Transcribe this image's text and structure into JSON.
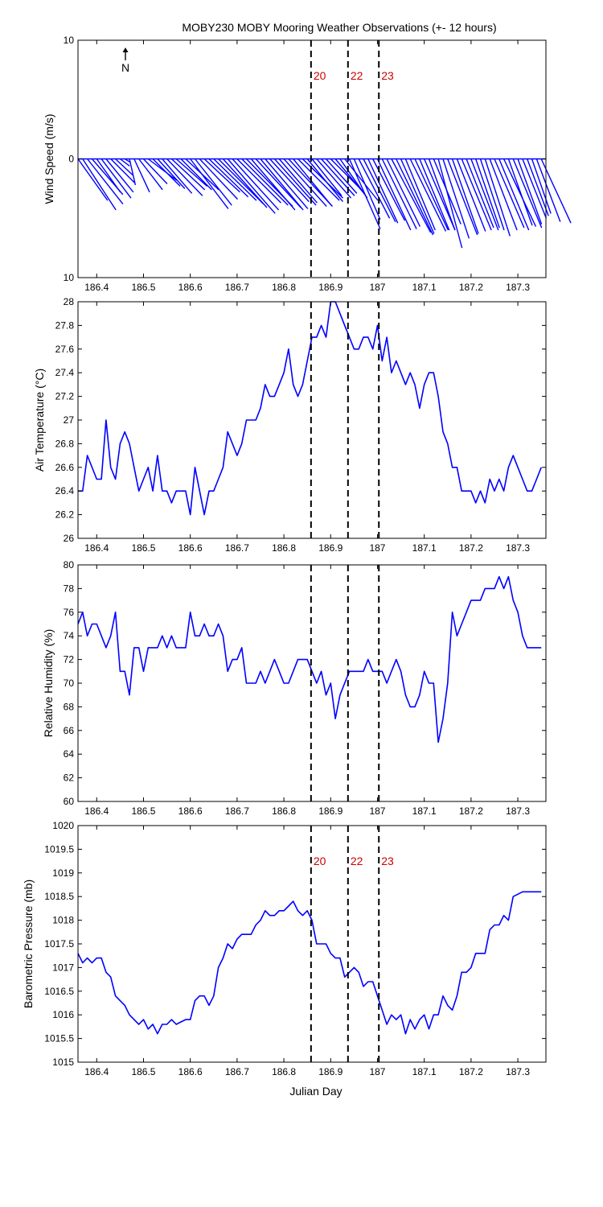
{
  "figure": {
    "title": "MOBY230 MOBY Mooring Weather Observations (+- 12 hours)",
    "xlabel": "Julian Day",
    "north_label": "N"
  },
  "chart_data": [
    {
      "id": "wind",
      "type": "vector",
      "ylabel": "Wind Speed (m/s)",
      "xlim": [
        186.36,
        187.36
      ],
      "ylim": [
        -10,
        10
      ],
      "ytick_labels": [
        "10",
        "0",
        "10"
      ],
      "xticks": [
        "186.4",
        "186.5",
        "186.6",
        "186.7",
        "186.8",
        "186.9",
        "187",
        "187.1",
        "187.2",
        "187.3"
      ],
      "event_lines": [
        186.858,
        186.937,
        187.003
      ],
      "event_labels": [
        "20",
        "22",
        "23"
      ],
      "x": [
        186.36,
        186.37,
        186.38,
        186.39,
        186.4,
        186.41,
        186.42,
        186.43,
        186.44,
        186.45,
        186.46,
        186.47,
        186.48,
        186.49,
        186.5,
        186.51,
        186.52,
        186.53,
        186.54,
        186.55,
        186.56,
        186.57,
        186.58,
        186.59,
        186.6,
        186.61,
        186.62,
        186.63,
        186.64,
        186.65,
        186.66,
        186.67,
        186.68,
        186.69,
        186.7,
        186.71,
        186.72,
        186.73,
        186.74,
        186.75,
        186.76,
        186.77,
        186.78,
        186.79,
        186.8,
        186.81,
        186.82,
        186.83,
        186.84,
        186.85,
        186.86,
        186.87,
        186.88,
        186.89,
        186.9,
        186.91,
        186.92,
        186.93,
        186.94,
        186.95,
        186.96,
        186.97,
        186.98,
        186.99,
        187.0,
        187.01,
        187.02,
        187.03,
        187.04,
        187.05,
        187.06,
        187.07,
        187.08,
        187.09,
        187.1,
        187.11,
        187.12,
        187.13,
        187.14,
        187.15,
        187.16,
        187.17,
        187.18,
        187.19,
        187.2,
        187.21,
        187.22,
        187.23,
        187.24,
        187.25,
        187.26,
        187.27,
        187.28,
        187.29,
        187.3,
        187.31,
        187.32,
        187.33,
        187.34,
        187.35
      ],
      "u": [
        2.5,
        2.8,
        3.0,
        2.6,
        2.0,
        2.5,
        2.3,
        2.0,
        1.5,
        0.8,
        0.5,
        0.5,
        1.3,
        2.0,
        2.0,
        2.4,
        2.3,
        2.3,
        2.5,
        3.0,
        2.8,
        2.6,
        2.6,
        2.8,
        3.2,
        3.1,
        3.2,
        3.0,
        3.3,
        3.6,
        3.8,
        3.7,
        4.0,
        3.9,
        3.7,
        3.9,
        3.9,
        3.7,
        3.8,
        3.6,
        3.6,
        3.3,
        3.5,
        3.2,
        3.6,
        3.7,
        3.2,
        3.5,
        3.4,
        3.0,
        2.5,
        2.9,
        2.8,
        2.6,
        2.7,
        2.5,
        2.3,
        2.8,
        2.6,
        2.2,
        2.6,
        2.7,
        2.5,
        2.7,
        2.8,
        2.9,
        2.8,
        3.3,
        3.1,
        2.8,
        2.5,
        3.0,
        2.8,
        2.5,
        2.6,
        2.2,
        2.3,
        2.0,
        2.2,
        2.5,
        2.2,
        2.4,
        2.5,
        2.3,
        2.3,
        2.0,
        2.0,
        2.1,
        2.3,
        2.5,
        2.5,
        2.7,
        2.0,
        2.4,
        2.0,
        2.0,
        1.8,
        1.6,
        2.0,
        2.5
      ],
      "v": [
        -3.5,
        -4.3,
        -3.8,
        -3.0,
        -2.8,
        -3.3,
        -2.8,
        -2.0,
        -1.4,
        -0.6,
        -0.3,
        -2.2,
        -2.8,
        -2.6,
        -2.1,
        -1.8,
        -2.3,
        -2.5,
        -2.9,
        -3.1,
        -2.6,
        -2.3,
        -2.6,
        -2.6,
        -4.2,
        -3.9,
        -3.4,
        -2.8,
        -3.2,
        -3.5,
        -3.8,
        -4.1,
        -4.6,
        -4.3,
        -3.7,
        -3.9,
        -4.0,
        -4.3,
        -4.1,
        -4.3,
        -4.2,
        -3.6,
        -3.9,
        -3.7,
        -4.0,
        -4.0,
        -3.9,
        -3.5,
        -3.3,
        -3.6,
        -3.1,
        -3.3,
        -3.1,
        -2.9,
        -2.7,
        -3.0,
        -3.3,
        -3.5,
        -5.9,
        -5.1,
        -5.0,
        -5.3,
        -5.4,
        -5.2,
        -6.0,
        -5.9,
        -5.7,
        -6.2,
        -6.4,
        -6.3,
        -6.0,
        -6.1,
        -6.0,
        -6.0,
        -6.0,
        -6.0,
        -5.5,
        -7.5,
        -6.7,
        -6.4,
        -6.3,
        -6.1,
        -6.0,
        -5.8,
        -6.0,
        -5.8,
        -6.0,
        -6.5,
        -6.0,
        -5.8,
        -6.0,
        -5.7,
        -5.6,
        -5.8,
        -5.5,
        -5.0,
        -4.8,
        -4.6,
        -5.3,
        -5.4
      ]
    },
    {
      "id": "air_temperature",
      "type": "line",
      "ylabel": "Air Temperature (°C)",
      "xlim": [
        186.36,
        187.36
      ],
      "ylim": [
        26,
        28
      ],
      "ytick_labels": [
        "26",
        "26.2",
        "26.4",
        "26.6",
        "26.8",
        "27",
        "27.2",
        "27.4",
        "27.6",
        "27.8",
        "28"
      ],
      "xticks": [
        "186.4",
        "186.5",
        "186.6",
        "186.7",
        "186.8",
        "186.9",
        "187",
        "187.1",
        "187.2",
        "187.3"
      ],
      "event_lines": [
        186.858,
        186.937,
        187.003
      ],
      "x": [
        186.36,
        186.37,
        186.38,
        186.39,
        186.4,
        186.41,
        186.42,
        186.43,
        186.44,
        186.45,
        186.46,
        186.47,
        186.48,
        186.49,
        186.5,
        186.51,
        186.52,
        186.53,
        186.54,
        186.55,
        186.56,
        186.57,
        186.58,
        186.59,
        186.6,
        186.61,
        186.62,
        186.63,
        186.64,
        186.65,
        186.66,
        186.67,
        186.68,
        186.69,
        186.7,
        186.71,
        186.72,
        186.73,
        186.74,
        186.75,
        186.76,
        186.77,
        186.78,
        186.79,
        186.8,
        186.81,
        186.82,
        186.83,
        186.84,
        186.85,
        186.86,
        186.87,
        186.88,
        186.89,
        186.9,
        186.91,
        186.92,
        186.93,
        186.94,
        186.95,
        186.96,
        186.97,
        186.98,
        186.99,
        187.0,
        187.01,
        187.02,
        187.03,
        187.04,
        187.05,
        187.06,
        187.07,
        187.08,
        187.09,
        187.1,
        187.11,
        187.12,
        187.13,
        187.14,
        187.15,
        187.16,
        187.17,
        187.18,
        187.19,
        187.2,
        187.21,
        187.22,
        187.23,
        187.24,
        187.25,
        187.26,
        187.27,
        187.28,
        187.29,
        187.3,
        187.31,
        187.32,
        187.33,
        187.34,
        187.35
      ],
      "values": [
        26.4,
        26.4,
        26.7,
        26.6,
        26.5,
        26.5,
        27.0,
        26.6,
        26.5,
        26.8,
        26.9,
        26.8,
        26.6,
        26.4,
        26.5,
        26.6,
        26.4,
        26.7,
        26.4,
        26.4,
        26.3,
        26.4,
        26.4,
        26.4,
        26.2,
        26.6,
        26.4,
        26.2,
        26.4,
        26.4,
        26.5,
        26.6,
        26.9,
        26.8,
        26.7,
        26.8,
        27.0,
        27.0,
        27.0,
        27.1,
        27.3,
        27.2,
        27.2,
        27.3,
        27.4,
        27.6,
        27.3,
        27.2,
        27.3,
        27.5,
        27.7,
        27.7,
        27.8,
        27.7,
        28.0,
        28.0,
        27.9,
        27.8,
        27.7,
        27.6,
        27.6,
        27.7,
        27.7,
        27.6,
        27.8,
        27.5,
        27.7,
        27.4,
        27.5,
        27.4,
        27.3,
        27.4,
        27.3,
        27.1,
        27.3,
        27.4,
        27.4,
        27.2,
        26.9,
        26.8,
        26.6,
        26.6,
        26.4,
        26.4,
        26.4,
        26.3,
        26.4,
        26.3,
        26.5,
        26.4,
        26.5,
        26.4,
        26.6,
        26.7,
        26.6,
        26.5,
        26.4,
        26.4,
        26.5,
        26.6
      ]
    },
    {
      "id": "relative_humidity",
      "type": "line",
      "ylabel": "Relative Humidity (%)",
      "xlim": [
        186.36,
        187.36
      ],
      "ylim": [
        60,
        80
      ],
      "ytick_labels": [
        "60",
        "62",
        "64",
        "66",
        "68",
        "70",
        "72",
        "74",
        "76",
        "78",
        "80"
      ],
      "xticks": [
        "186.4",
        "186.5",
        "186.6",
        "186.7",
        "186.8",
        "186.9",
        "187",
        "187.1",
        "187.2",
        "187.3"
      ],
      "event_lines": [
        186.858,
        186.937,
        187.003
      ],
      "x": [
        186.36,
        186.37,
        186.38,
        186.39,
        186.4,
        186.41,
        186.42,
        186.43,
        186.44,
        186.45,
        186.46,
        186.47,
        186.48,
        186.49,
        186.5,
        186.51,
        186.52,
        186.53,
        186.54,
        186.55,
        186.56,
        186.57,
        186.58,
        186.59,
        186.6,
        186.61,
        186.62,
        186.63,
        186.64,
        186.65,
        186.66,
        186.67,
        186.68,
        186.69,
        186.7,
        186.71,
        186.72,
        186.73,
        186.74,
        186.75,
        186.76,
        186.77,
        186.78,
        186.79,
        186.8,
        186.81,
        186.82,
        186.83,
        186.84,
        186.85,
        186.86,
        186.87,
        186.88,
        186.89,
        186.9,
        186.91,
        186.92,
        186.93,
        186.94,
        186.95,
        186.96,
        186.97,
        186.98,
        186.99,
        187.0,
        187.01,
        187.02,
        187.03,
        187.04,
        187.05,
        187.06,
        187.07,
        187.08,
        187.09,
        187.1,
        187.11,
        187.12,
        187.13,
        187.14,
        187.15,
        187.16,
        187.17,
        187.18,
        187.19,
        187.2,
        187.21,
        187.22,
        187.23,
        187.24,
        187.25,
        187.26,
        187.27,
        187.28,
        187.29,
        187.3,
        187.31,
        187.32,
        187.33,
        187.34,
        187.35
      ],
      "values": [
        75,
        76,
        74,
        75,
        75,
        74,
        73,
        74,
        76,
        71,
        71,
        69,
        73,
        73,
        71,
        73,
        73,
        73,
        74,
        73,
        74,
        73,
        73,
        73,
        76,
        74,
        74,
        75,
        74,
        74,
        75,
        74,
        71,
        72,
        72,
        73,
        70,
        70,
        70,
        71,
        70,
        71,
        72,
        71,
        70,
        70,
        71,
        72,
        72,
        72,
        71,
        70,
        71,
        69,
        70,
        67,
        69,
        70,
        71,
        71,
        71,
        71,
        72,
        71,
        71,
        71,
        70,
        71,
        72,
        71,
        69,
        68,
        68,
        69,
        71,
        70,
        70,
        65,
        67,
        70,
        76,
        74,
        75,
        76,
        77,
        77,
        77,
        78,
        78,
        78,
        79,
        78,
        79,
        77,
        76,
        74,
        73,
        73,
        73,
        73
      ]
    },
    {
      "id": "barometric_pressure",
      "type": "line",
      "ylabel": "Barometric Pressure (mb)",
      "xlim": [
        186.36,
        187.36
      ],
      "ylim": [
        1015,
        1020
      ],
      "ytick_labels": [
        "1015",
        "1015.5",
        "1016",
        "1016.5",
        "1017",
        "1017.5",
        "1018",
        "1018.5",
        "1019",
        "1019.5",
        "1020"
      ],
      "xticks": [
        "186.4",
        "186.5",
        "186.6",
        "186.7",
        "186.8",
        "186.9",
        "187",
        "187.1",
        "187.2",
        "187.3"
      ],
      "event_lines": [
        186.858,
        186.937,
        187.003
      ],
      "event_labels": [
        "20",
        "22",
        "23"
      ],
      "x": [
        186.36,
        186.37,
        186.38,
        186.39,
        186.4,
        186.41,
        186.42,
        186.43,
        186.44,
        186.45,
        186.46,
        186.47,
        186.48,
        186.49,
        186.5,
        186.51,
        186.52,
        186.53,
        186.54,
        186.55,
        186.56,
        186.57,
        186.58,
        186.59,
        186.6,
        186.61,
        186.62,
        186.63,
        186.64,
        186.65,
        186.66,
        186.67,
        186.68,
        186.69,
        186.7,
        186.71,
        186.72,
        186.73,
        186.74,
        186.75,
        186.76,
        186.77,
        186.78,
        186.79,
        186.8,
        186.81,
        186.82,
        186.83,
        186.84,
        186.85,
        186.86,
        186.87,
        186.88,
        186.89,
        186.9,
        186.91,
        186.92,
        186.93,
        186.94,
        186.95,
        186.96,
        186.97,
        186.98,
        186.99,
        187.0,
        187.01,
        187.02,
        187.03,
        187.04,
        187.05,
        187.06,
        187.07,
        187.08,
        187.09,
        187.1,
        187.11,
        187.12,
        187.13,
        187.14,
        187.15,
        187.16,
        187.17,
        187.18,
        187.19,
        187.2,
        187.21,
        187.22,
        187.23,
        187.24,
        187.25,
        187.26,
        187.27,
        187.28,
        187.29,
        187.3,
        187.31,
        187.32,
        187.33,
        187.34,
        187.35
      ],
      "values": [
        1017.3,
        1017.1,
        1017.2,
        1017.1,
        1017.2,
        1017.2,
        1016.9,
        1016.8,
        1016.4,
        1016.3,
        1016.2,
        1016.0,
        1015.9,
        1015.8,
        1015.9,
        1015.7,
        1015.8,
        1015.6,
        1015.8,
        1015.8,
        1015.9,
        1015.8,
        1015.85,
        1015.9,
        1015.9,
        1016.3,
        1016.4,
        1016.4,
        1016.2,
        1016.4,
        1017.0,
        1017.2,
        1017.5,
        1017.4,
        1017.6,
        1017.7,
        1017.7,
        1017.7,
        1017.9,
        1018.0,
        1018.2,
        1018.1,
        1018.1,
        1018.2,
        1018.2,
        1018.3,
        1018.4,
        1018.2,
        1018.1,
        1018.2,
        1018.0,
        1017.5,
        1017.5,
        1017.5,
        1017.3,
        1017.2,
        1017.2,
        1016.8,
        1016.9,
        1017.0,
        1016.9,
        1016.6,
        1016.7,
        1016.7,
        1016.4,
        1016.1,
        1015.8,
        1016.0,
        1015.9,
        1016.0,
        1015.6,
        1015.9,
        1015.7,
        1015.9,
        1016.0,
        1015.7,
        1016.0,
        1016.0,
        1016.4,
        1016.2,
        1016.1,
        1016.4,
        1016.9,
        1016.9,
        1017.0,
        1017.3,
        1017.3,
        1017.3,
        1017.8,
        1017.9,
        1017.9,
        1018.1,
        1018.0,
        1018.5,
        1018.55,
        1018.6,
        1018.6,
        1018.6,
        1018.6,
        1018.6
      ]
    }
  ]
}
